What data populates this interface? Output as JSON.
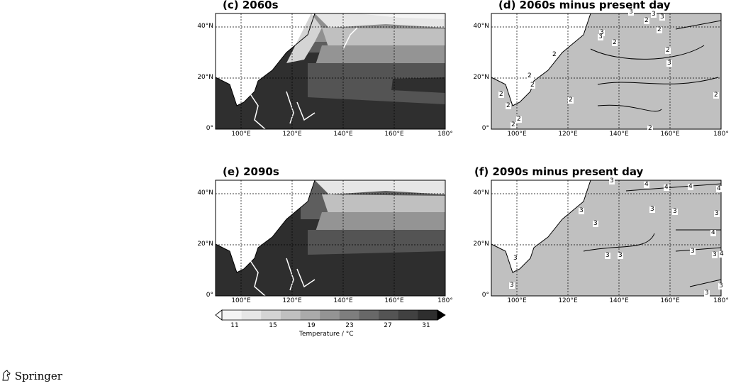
{
  "panels": {
    "c": {
      "title": "(c) 2060s"
    },
    "d": {
      "title": "(d) 2060s minus present day"
    },
    "e": {
      "title": "(e) 2090s"
    },
    "f": {
      "title": "(f) 2090s minus present day"
    }
  },
  "axes": {
    "lat_ticks": [
      "40°N",
      "20°N",
      "0°"
    ],
    "lon_ticks": [
      "100°E",
      "120°E",
      "140°E",
      "160°E",
      "180°"
    ]
  },
  "contour_labels": {
    "d": [
      "3",
      "3",
      "3",
      "2",
      "2",
      "3",
      "3",
      "2",
      "2",
      "3",
      "2",
      "2",
      "2",
      "2",
      "2",
      "2",
      "2",
      "2",
      "2",
      "2"
    ],
    "f": [
      "3",
      "4",
      "4",
      "4",
      "4",
      "3",
      "3",
      "3",
      "3",
      "3",
      "3",
      "3",
      "3",
      "4",
      "4",
      "3",
      "3",
      "3",
      "3",
      "3"
    ]
  },
  "colorbar": {
    "tick_labels": [
      "11",
      "15",
      "19",
      "23",
      "27",
      "31"
    ],
    "label": "Temperature / °C",
    "colors": [
      "#ffffff",
      "#f4f4f4",
      "#e6e6e6",
      "#d4d4d4",
      "#c0c0c0",
      "#aaaaaa",
      "#949494",
      "#7e7e7e",
      "#686868",
      "#545454",
      "#414141",
      "#2e2e2e",
      "#1c1c1c"
    ]
  },
  "footer": {
    "publisher": "Springer",
    "logo_icon": "springer-horse-icon"
  }
}
